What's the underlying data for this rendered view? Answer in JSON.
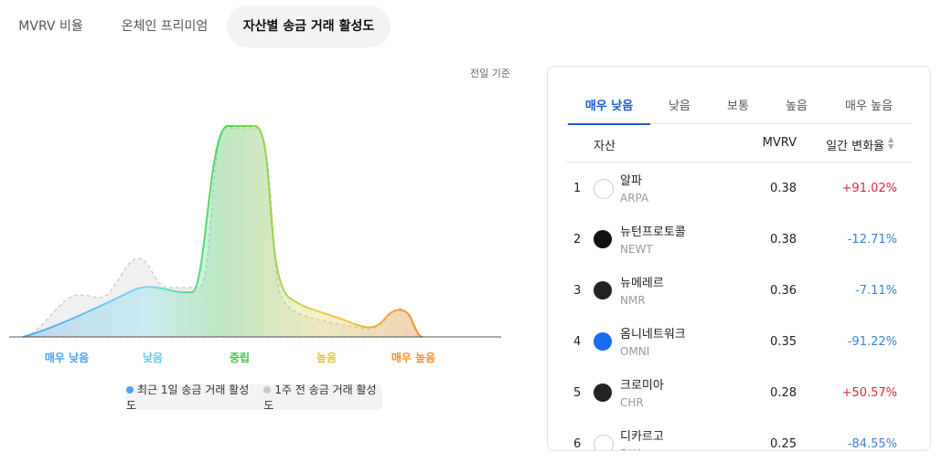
{
  "tabs": [
    "MVRV 비율",
    "온체인 프리미엄",
    "자산별 송금 거래 활성도"
  ],
  "basis": "전일 기준",
  "zones": [
    "매우 낮음",
    "낮음",
    "중립",
    "높음",
    "매우 높음"
  ],
  "legend": [
    "최근 1일 송금 거래 활성도",
    "1주 전 송금 거래 활성도"
  ],
  "panel": {
    "tabs": [
      "매우 낮음",
      "낮음",
      "보통",
      "높음",
      "매우 높음"
    ],
    "headers": [
      "자산",
      "MVRV",
      "일간 변화율"
    ],
    "rows": [
      {
        "rank": "1",
        "name": "알파",
        "ticker": "ARPA",
        "mvrv": "0.38",
        "change": "+91.02%"
      },
      {
        "rank": "2",
        "name": "뉴턴프로토콜",
        "ticker": "NEWT",
        "mvrv": "0.38",
        "change": "-12.71%"
      },
      {
        "rank": "3",
        "name": "뉴메레르",
        "ticker": "NMR",
        "mvrv": "0.36",
        "change": "-7.11%"
      },
      {
        "rank": "4",
        "name": "옴니네트워크",
        "ticker": "OMNI",
        "mvrv": "0.35",
        "change": "-91.22%"
      },
      {
        "rank": "5",
        "name": "크로미아",
        "ticker": "CHR",
        "mvrv": "0.28",
        "change": "+50.57%"
      },
      {
        "rank": "6",
        "name": "디카르고",
        "ticker": "DKA",
        "mvrv": "0.25",
        "change": "-84.55%"
      }
    ]
  }
}
